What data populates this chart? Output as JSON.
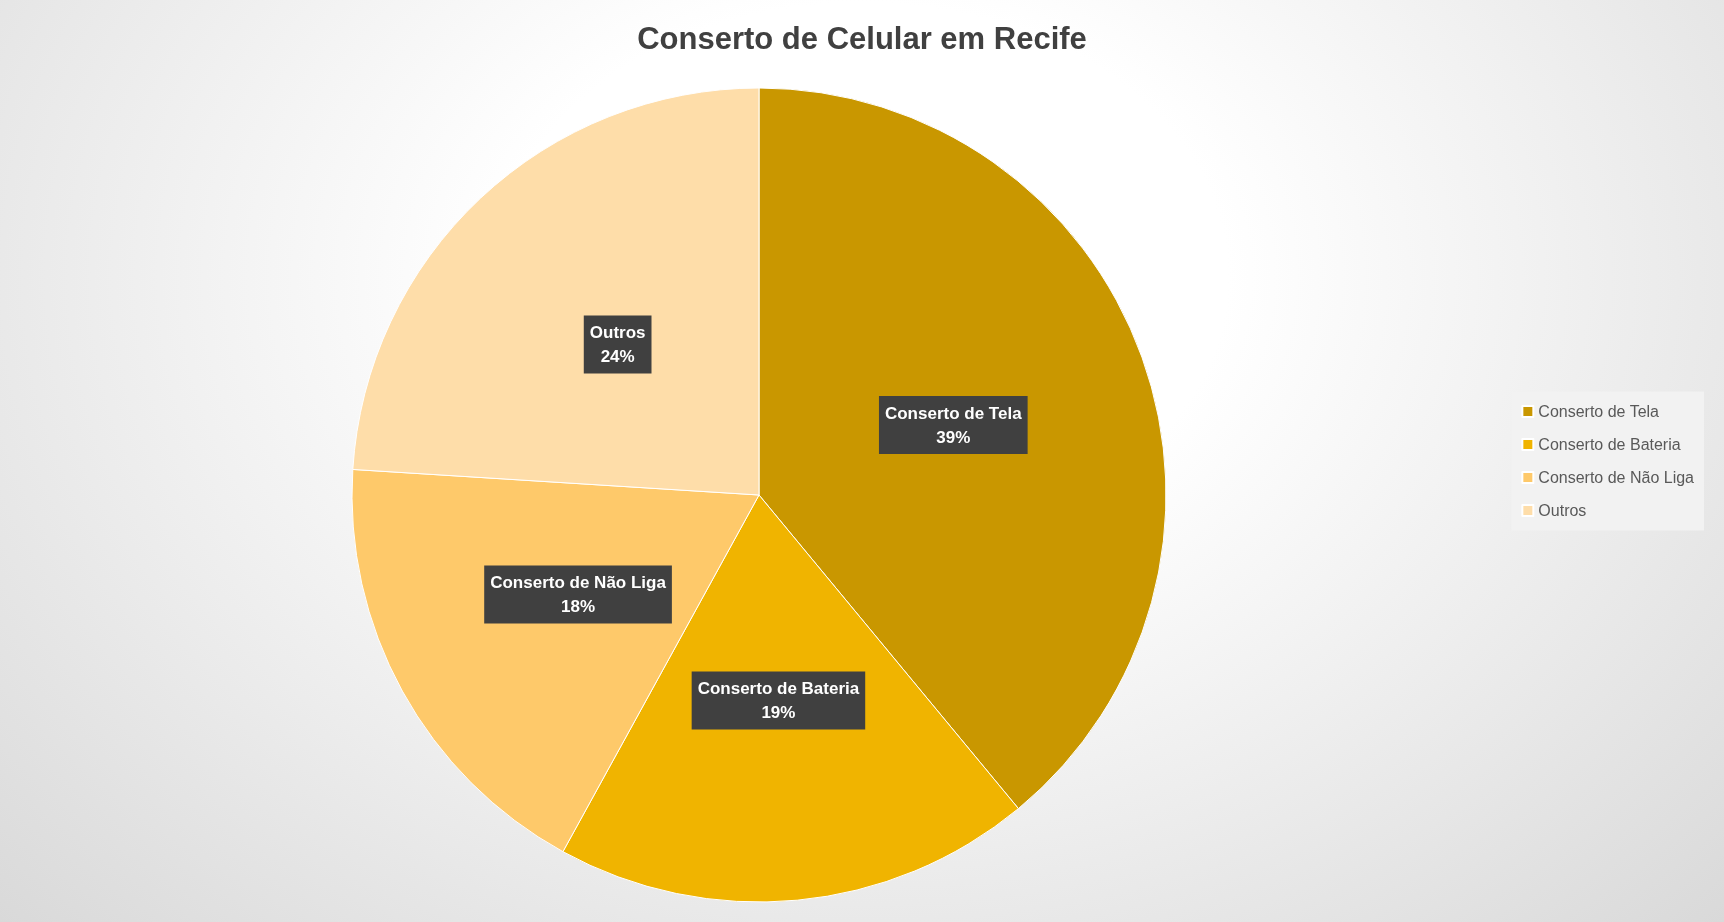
{
  "chart_data": {
    "type": "pie",
    "title": "Conserto de Celular em Recife",
    "categories": [
      "Conserto de Tela",
      "Conserto de Bateria",
      "Conserto de Não Liga",
      "Outros"
    ],
    "values": [
      39,
      19,
      18,
      24
    ],
    "colors": [
      "#c99700",
      "#f0b400",
      "#fec96a",
      "#fedda9"
    ],
    "value_labels": [
      "39%",
      "19%",
      "18%",
      "24%"
    ],
    "legend": "right"
  }
}
